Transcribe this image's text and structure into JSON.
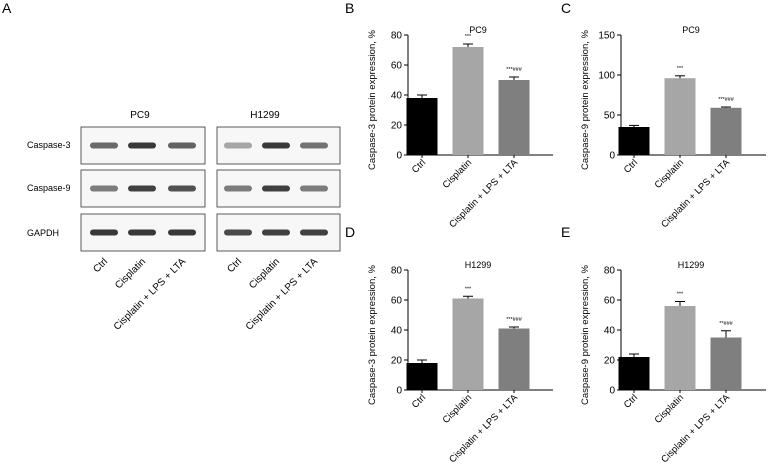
{
  "panel_a": {
    "letter": "A",
    "groups": [
      {
        "cell_line": "PC9"
      },
      {
        "cell_line": "H1299"
      }
    ],
    "proteins": [
      "Caspase-3",
      "Caspase-9",
      "GAPDH"
    ],
    "lanes": [
      "Ctrl",
      "Cisplatin",
      "Cisplatin + LPS + LTA"
    ],
    "band_intensity": {
      "PC9": [
        [
          0.55,
          0.85,
          0.6
        ],
        [
          0.45,
          0.8,
          0.7
        ],
        [
          0.85,
          0.85,
          0.85
        ]
      ],
      "H1299": [
        [
          0.2,
          0.85,
          0.5
        ],
        [
          0.45,
          0.8,
          0.45
        ],
        [
          0.75,
          0.8,
          0.8
        ]
      ]
    }
  },
  "chart_data": [
    {
      "panel": "B",
      "type": "bar",
      "title": "PC9",
      "categories": [
        "Ctrl",
        "Cisplatin",
        "Cisplatin + LPS + LTA"
      ],
      "values": [
        38,
        72,
        50
      ],
      "errors": [
        2,
        2,
        2
      ],
      "annotations": [
        "",
        "***",
        "***###"
      ],
      "bar_colors": [
        "#000000",
        "#a6a6a6",
        "#7f7f7f"
      ],
      "xlabel": "",
      "ylabel": "Caspase-3 protein expression, %",
      "ylim": [
        0,
        80
      ],
      "yticks": [
        0,
        20,
        40,
        60,
        80
      ]
    },
    {
      "panel": "C",
      "type": "bar",
      "title": "PC9",
      "categories": [
        "Ctrl",
        "Cisplatin",
        "Cisplatin + LPS + LTA"
      ],
      "values": [
        35,
        96,
        59
      ],
      "errors": [
        2,
        3,
        1
      ],
      "annotations": [
        "",
        "***",
        "***###"
      ],
      "bar_colors": [
        "#000000",
        "#a6a6a6",
        "#7f7f7f"
      ],
      "xlabel": "",
      "ylabel": "Caspase-9 protein expression, %",
      "ylim": [
        0,
        150
      ],
      "yticks": [
        0,
        50,
        100,
        150
      ]
    },
    {
      "panel": "D",
      "type": "bar",
      "title": "H1299",
      "categories": [
        "Ctrl",
        "Cisplatin",
        "Cisplatin + LPS + LTA"
      ],
      "values": [
        18,
        61,
        41
      ],
      "errors": [
        2,
        1.5,
        1
      ],
      "annotations": [
        "",
        "***",
        "***###"
      ],
      "bar_colors": [
        "#000000",
        "#a6a6a6",
        "#7f7f7f"
      ],
      "xlabel": "",
      "ylabel": "Caspase-3 protein expression, %",
      "ylim": [
        0,
        80
      ],
      "yticks": [
        0,
        20,
        40,
        60,
        80
      ]
    },
    {
      "panel": "E",
      "type": "bar",
      "title": "H1299",
      "categories": [
        "Ctrl",
        "Cisplatin",
        "Cisplatin + LPS + LTA"
      ],
      "values": [
        22,
        56,
        35
      ],
      "errors": [
        2,
        3,
        4.5
      ],
      "annotations": [
        "",
        "***",
        "**###"
      ],
      "bar_colors": [
        "#000000",
        "#a6a6a6",
        "#7f7f7f"
      ],
      "xlabel": "",
      "ylabel": "Caspase-9 protein expression, %",
      "ylim": [
        0,
        80
      ],
      "yticks": [
        0,
        20,
        40,
        60,
        80
      ]
    }
  ]
}
